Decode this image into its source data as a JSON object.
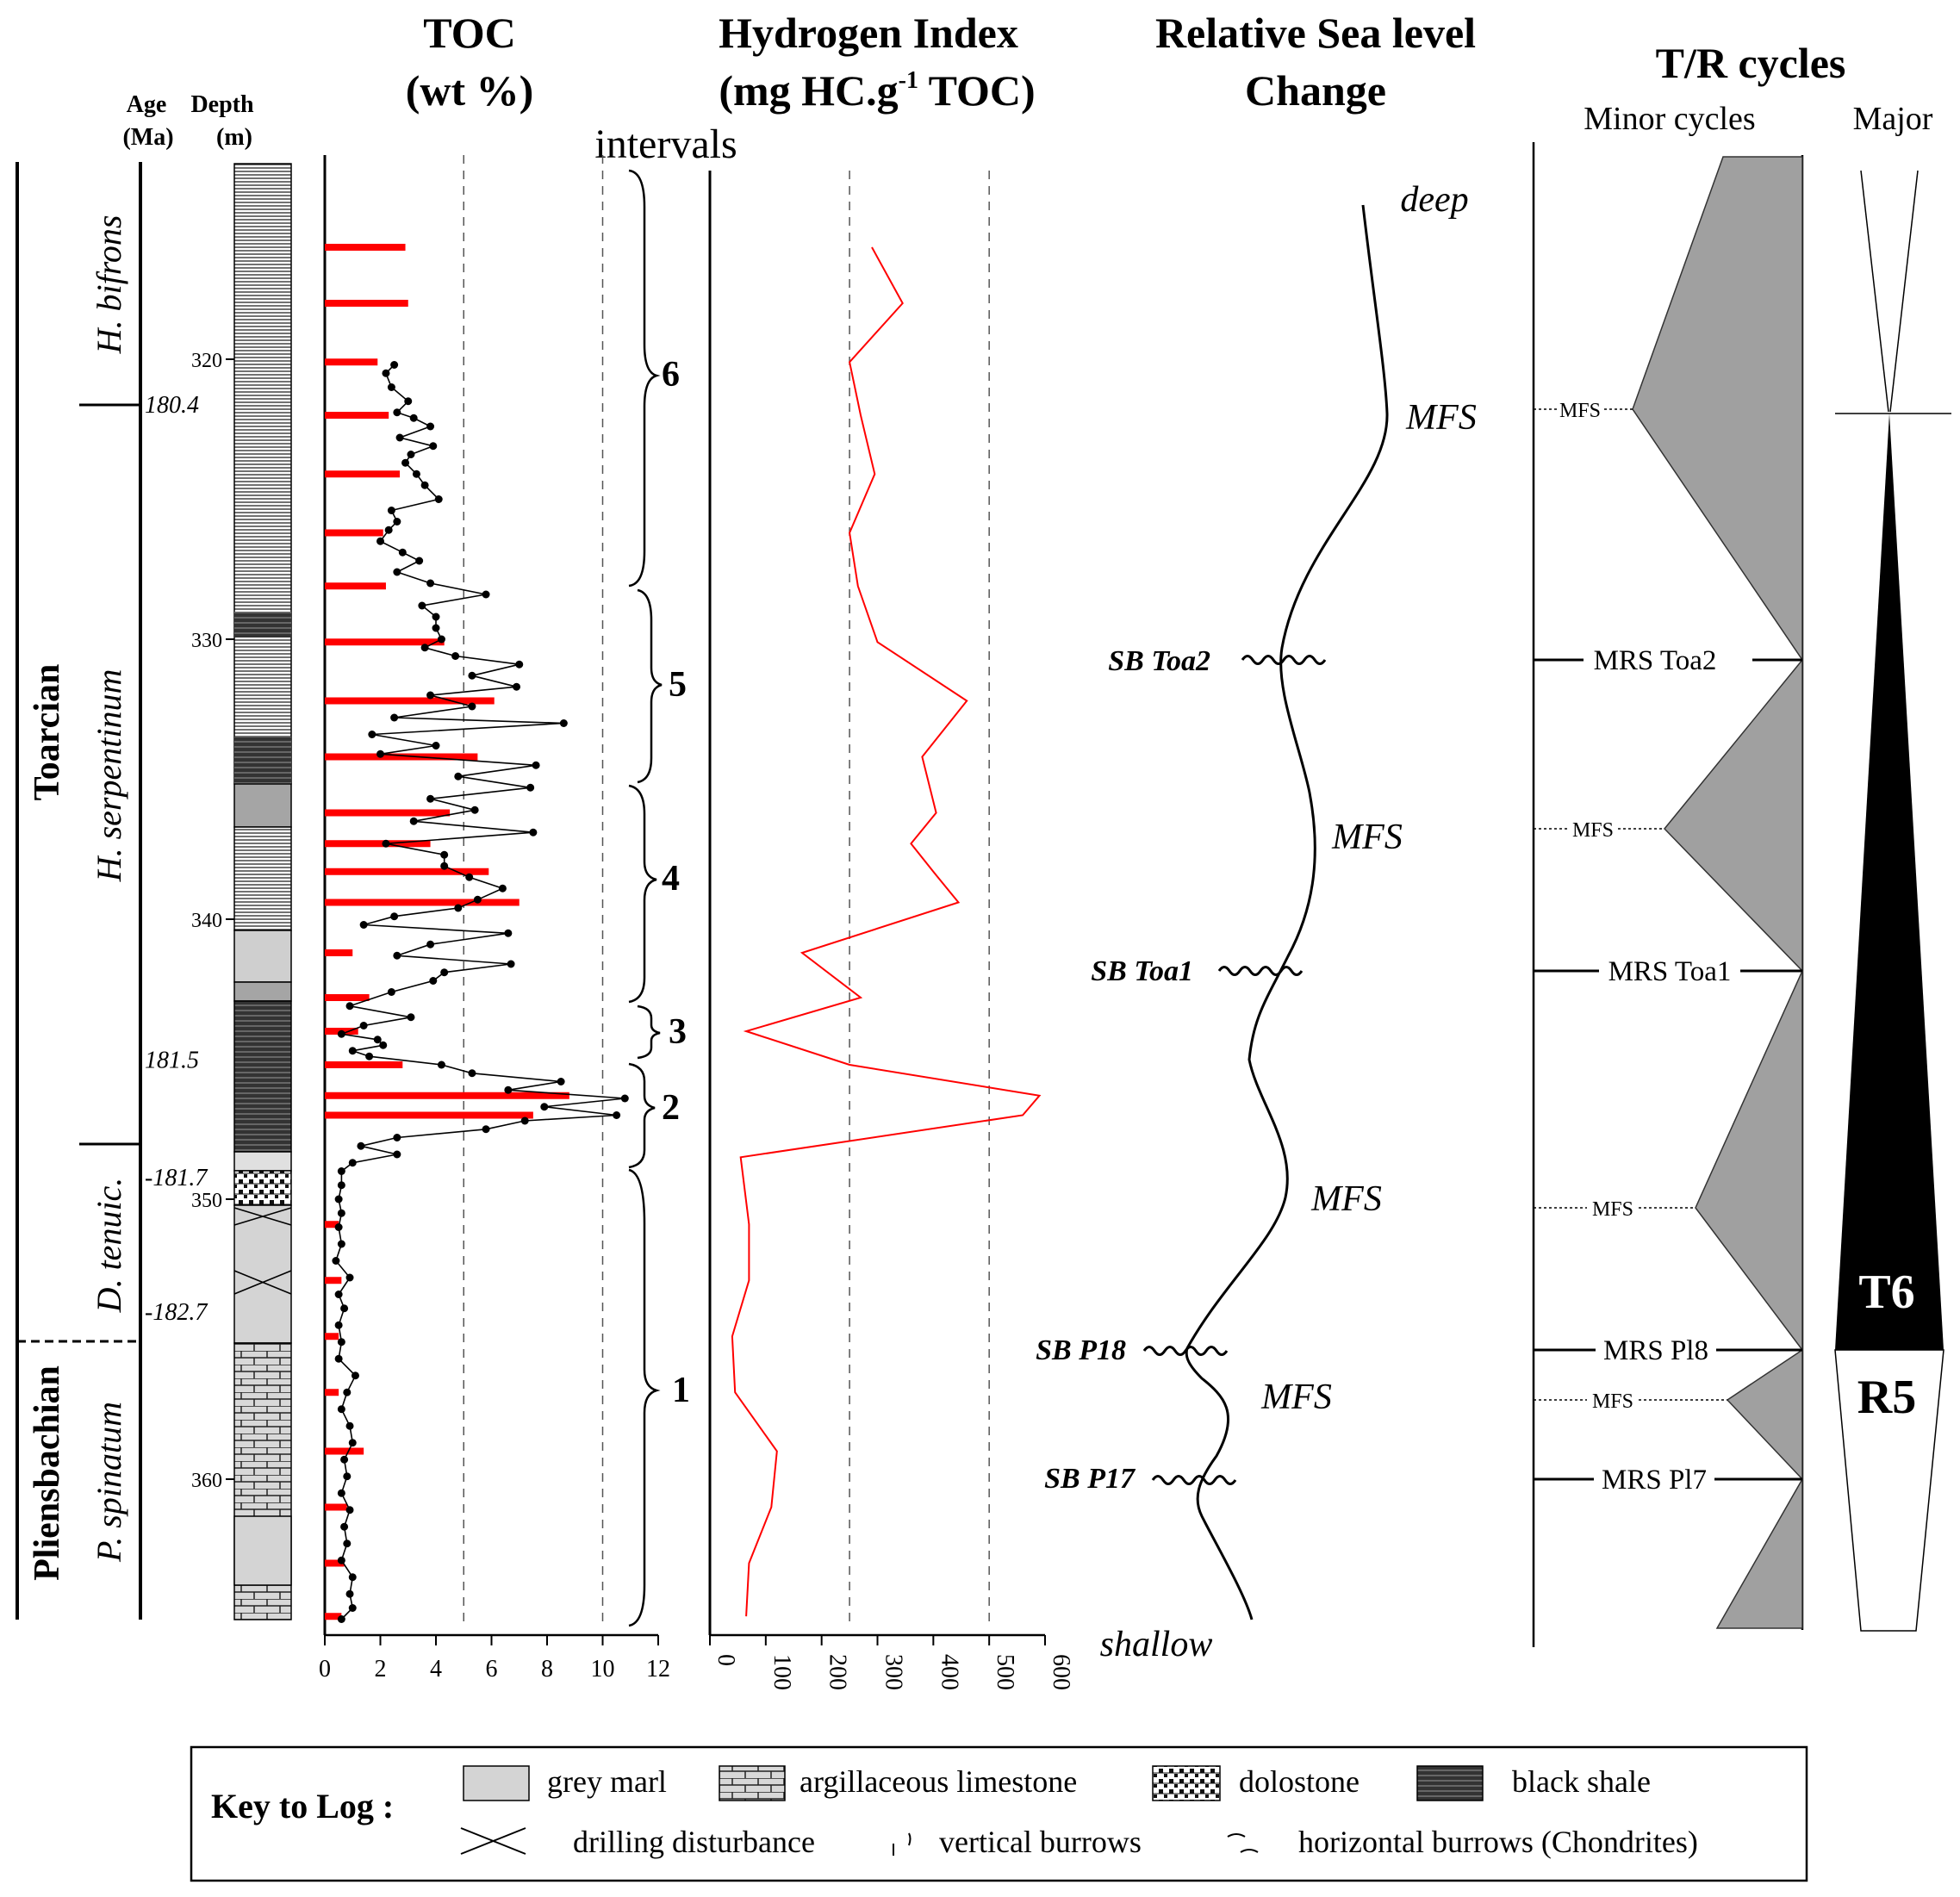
{
  "chart_data": [
    {
      "type": "line",
      "title": "TOC (wt %)",
      "title_lines": [
        "TOC",
        "(wt %)"
      ],
      "xlabel": "",
      "ylabel": "Depth (m)",
      "xlim": [
        0,
        12
      ],
      "ylim": [
        314,
        366
      ],
      "xticks": [
        0,
        2,
        4,
        6,
        8,
        10,
        12
      ],
      "dashed_reference_x": [
        5,
        10
      ],
      "intervals_label": "intervals",
      "series": [
        {
          "name": "TOC samples",
          "style": "black line with dots",
          "depth": [
            320.2,
            320.5,
            321.0,
            321.5,
            321.9,
            322.1,
            322.4,
            322.8,
            323.1,
            323.4,
            323.7,
            324.1,
            324.5,
            325.0,
            325.4,
            325.8,
            326.1,
            326.5,
            326.9,
            327.2,
            327.6,
            328.0,
            328.4,
            328.8,
            329.2,
            329.6,
            330.0,
            330.3,
            330.6,
            330.9,
            331.3,
            331.7,
            332.0,
            332.4,
            332.8,
            333.0,
            333.4,
            333.8,
            334.1,
            334.5,
            334.9,
            335.3,
            335.7,
            336.1,
            336.5,
            336.9,
            337.3,
            337.7,
            338.1,
            338.5,
            338.9,
            339.3,
            339.6,
            339.9,
            340.2,
            340.5,
            340.9,
            341.3,
            341.6,
            341.9,
            342.2,
            342.6,
            343.1,
            343.5,
            343.8,
            344.1,
            344.3,
            344.5,
            344.7,
            344.9,
            345.2,
            345.5,
            345.8,
            346.1,
            346.4,
            346.7,
            347.0,
            347.2,
            347.5,
            347.8,
            348.1,
            348.4,
            348.7,
            349.0,
            349.5,
            350.0,
            350.5,
            351.0,
            351.6,
            352.2,
            352.8,
            353.4,
            353.9,
            354.5,
            355.1,
            355.7,
            356.3,
            356.9,
            357.5,
            358.1,
            358.7,
            359.3,
            359.9,
            360.5,
            361.1,
            361.7,
            362.3,
            362.9,
            363.5,
            364.1,
            364.6,
            365.0
          ],
          "toc": [
            2.5,
            2.2,
            2.4,
            3.0,
            2.6,
            3.2,
            3.8,
            2.7,
            3.9,
            3.1,
            2.9,
            3.3,
            3.6,
            4.1,
            2.4,
            2.6,
            2.3,
            2.0,
            2.8,
            3.4,
            2.6,
            3.8,
            5.8,
            3.5,
            4.0,
            4.0,
            4.2,
            3.6,
            4.7,
            7.0,
            5.3,
            6.9,
            3.8,
            5.3,
            2.5,
            8.6,
            1.7,
            4.0,
            2.0,
            7.6,
            4.8,
            7.4,
            3.8,
            5.4,
            3.2,
            7.5,
            2.2,
            4.3,
            4.3,
            5.2,
            6.4,
            5.5,
            4.8,
            2.5,
            1.4,
            6.6,
            3.8,
            2.6,
            6.7,
            4.3,
            3.9,
            2.4,
            0.9,
            3.1,
            1.4,
            0.6,
            1.9,
            2.1,
            1.0,
            1.6,
            4.2,
            5.3,
            8.5,
            6.6,
            10.8,
            7.9,
            10.5,
            7.2,
            5.8,
            2.6,
            1.3,
            2.6,
            1.0,
            0.6,
            0.6,
            0.5,
            0.6,
            0.5,
            0.6,
            0.4,
            0.9,
            0.5,
            0.7,
            0.5,
            0.6,
            0.5,
            1.1,
            0.8,
            0.6,
            0.9,
            1.0,
            0.7,
            0.8,
            0.6,
            0.9,
            0.7,
            0.8,
            0.6,
            1.0,
            0.9,
            1.0,
            0.6
          ]
        },
        {
          "name": "Sampled TOC (red bars)",
          "style": "red horizontal bars",
          "depth": [
            316.0,
            318.0,
            320.1,
            322.0,
            324.1,
            326.2,
            328.1,
            330.1,
            332.2,
            334.2,
            336.2,
            337.3,
            338.3,
            339.4,
            341.2,
            342.8,
            344.0,
            345.2,
            346.3,
            347.0,
            350.9,
            352.9,
            354.9,
            356.9,
            359.0,
            361.0,
            363.0,
            364.9
          ],
          "toc": [
            2.9,
            3.0,
            1.9,
            2.3,
            2.7,
            2.1,
            2.2,
            4.3,
            6.1,
            5.5,
            4.5,
            3.8,
            5.9,
            7.0,
            1.0,
            1.6,
            1.2,
            2.8,
            8.8,
            7.5,
            0.5,
            0.6,
            0.5,
            0.5,
            1.4,
            0.8,
            0.7,
            0.6
          ]
        }
      ]
    },
    {
      "type": "line",
      "title": "Hydrogen Index (mg HC.g-1 TOC)",
      "title_lines": [
        "Hydrogen Index",
        "(mg HC.g",
        "-1",
        " TOC)"
      ],
      "xlim": [
        0,
        600
      ],
      "ylim": [
        314,
        366
      ],
      "xticks": [
        0,
        100,
        200,
        300,
        400,
        500,
        600
      ],
      "dashed_reference_x": [
        250,
        500
      ],
      "series": [
        {
          "name": "Hydrogen Index",
          "color": "#ff0000",
          "depth": [
            316.0,
            318.0,
            320.1,
            322.0,
            324.1,
            326.2,
            328.1,
            330.1,
            332.2,
            334.2,
            336.2,
            337.3,
            338.3,
            339.4,
            341.2,
            342.8,
            344.0,
            345.2,
            346.3,
            347.0,
            348.5,
            350.9,
            352.9,
            354.9,
            356.9,
            359.0,
            361.0,
            363.0,
            364.9
          ],
          "hi": [
            290,
            345,
            250,
            270,
            295,
            250,
            265,
            300,
            460,
            380,
            405,
            360,
            400,
            445,
            165,
            270,
            65,
            250,
            590,
            560,
            55,
            70,
            70,
            40,
            45,
            120,
            110,
            70,
            65
          ]
        }
      ]
    }
  ],
  "depth_axis": {
    "label_age": "Age",
    "label_age_unit": "(Ma)",
    "label_depth": "Depth",
    "label_depth_unit": "(m)",
    "depth_ticks": [
      {
        "depth": 320,
        "label": "320"
      },
      {
        "depth": 330,
        "label": "330"
      },
      {
        "depth": 340,
        "label": "340"
      },
      {
        "depth": 350,
        "label": "350"
      },
      {
        "depth": 360,
        "label": "360"
      }
    ],
    "age_ticks": [
      {
        "depth": 321.6,
        "label": "180.4"
      },
      {
        "depth": 345.0,
        "label": "181.5"
      },
      {
        "depth": 349.2,
        "label": "-181.7"
      },
      {
        "depth": 354.0,
        "label": "-182.7"
      }
    ],
    "stages": [
      "Toarcian",
      "Pliensbachian"
    ],
    "zones": [
      "H. bifrons",
      "H. serpentinum",
      "D. tenuic.",
      "P. spinatum"
    ]
  },
  "intervals": [
    "6",
    "5",
    "4",
    "3",
    "2",
    "1"
  ],
  "sea_level": {
    "title_lines": [
      "Relative Sea level",
      "Change"
    ],
    "deep_label": "deep",
    "shallow_label": "shallow",
    "mfs_labels": [
      "MFS",
      "MFS",
      "MFS",
      "MFS"
    ],
    "sequence_boundaries": [
      "SB Toa2",
      "SB Toa1",
      "SB P18",
      "SB P17"
    ]
  },
  "tr_cycles": {
    "title": "T/R cycles",
    "minor_label": "Minor cycles",
    "major_label": "Major",
    "mrs_labels": [
      "MRS Toa2",
      "MRS Toa1",
      "MRS Pl8",
      "MRS Pl7"
    ],
    "mfs_labels": [
      "MFS",
      "MFS",
      "MFS",
      "MFS"
    ],
    "major_t": "T6",
    "major_r": "R5"
  },
  "legend": {
    "title": "Key to Log :",
    "items": [
      "grey marl",
      "argillaceous limestone",
      "dolostone",
      "black shale",
      "drilling disturbance",
      "vertical burrows",
      "horizontal burrows (Chondrites)"
    ]
  },
  "colors": {
    "toc_bar": "#ff0000",
    "hi_line": "#ff0000",
    "cycle_fill": "#a0a0a0",
    "marl": "#d4d4d4",
    "shale": "#555555"
  }
}
